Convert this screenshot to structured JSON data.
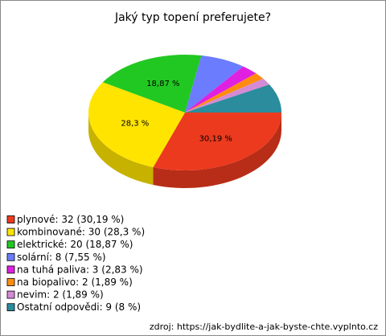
{
  "chart_data": {
    "type": "pie",
    "title": "Jaký typ topení preferujete?",
    "categories": [
      "plynové: 32 (30,19 %)",
      "kombinované: 30 (28,3 %)",
      "elektrické: 20 (18,87 %)",
      "solární: 8 (7,55 %)",
      "na tuhá paliva: 3 (2,83 %)",
      "na biopalivo: 2 (1,89 %)",
      "nevim: 2 (1,89 %)",
      "Ostatní odpovědi: 9 (8 %)"
    ],
    "values": [
      30.19,
      28.3,
      18.87,
      7.55,
      2.83,
      1.89,
      1.89,
      8
    ],
    "value_labels": [
      "30,19 %",
      "28,3 %",
      "18,87 %",
      null,
      null,
      null,
      null,
      null
    ],
    "colors": [
      "#ec3a1e",
      "#ffe400",
      "#22c822",
      "#6b7cff",
      "#e020e0",
      "#ff8c10",
      "#d58ad5",
      "#2a8c9c"
    ],
    "annotation": "zdroj: https://jak-bydlite-a-jak-byste-chte.vyplnto.cz"
  }
}
